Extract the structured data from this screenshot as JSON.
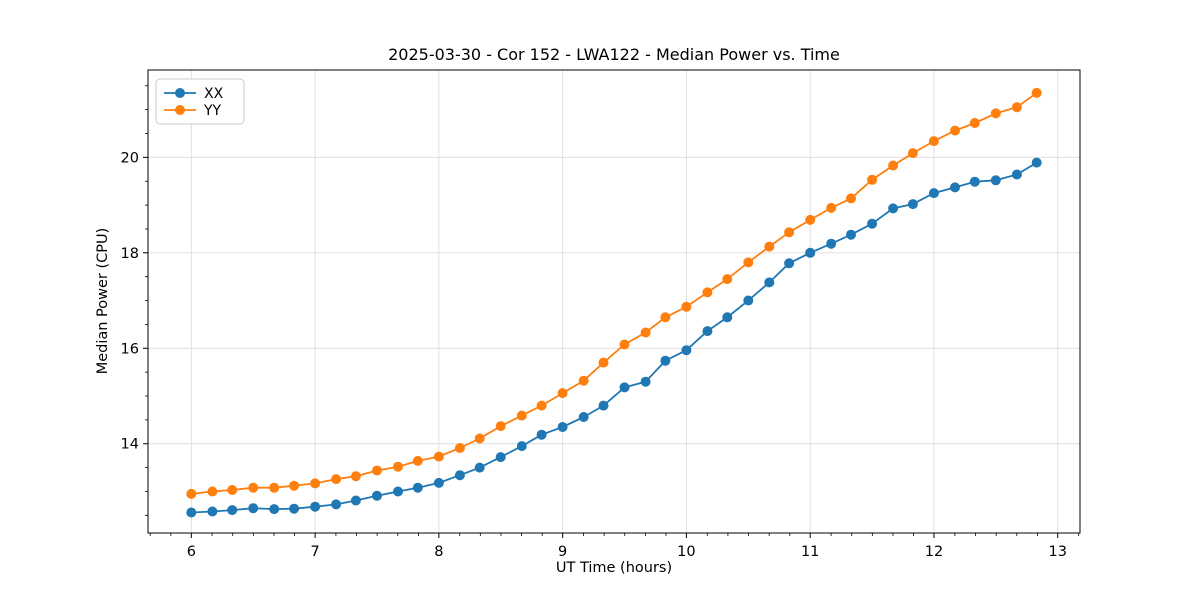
{
  "figure": {
    "title": "2025-03-30 - Cor 152 - LWA122 - Median Power vs. Time"
  },
  "chart_data": {
    "type": "line",
    "title": "2025-03-30 - Cor 152 - LWA122 - Median Power vs. Time",
    "xlabel": "UT Time (hours)",
    "ylabel": "Median Power (CPU)",
    "xlim": [
      5.65,
      13.18
    ],
    "ylim": [
      12.13,
      21.83
    ],
    "xticks": [
      6,
      7,
      8,
      9,
      10,
      11,
      12,
      13
    ],
    "yticks": [
      14,
      16,
      18,
      20
    ],
    "minor_x_step": 0.1667,
    "minor_y_step": 0.5,
    "grid": true,
    "grid_color": "#dcdcdc",
    "spine_color": "#000000",
    "legend_position": "upper left",
    "x": [
      6.0,
      6.17,
      6.33,
      6.5,
      6.67,
      6.83,
      7.0,
      7.17,
      7.33,
      7.5,
      7.67,
      7.83,
      8.0,
      8.17,
      8.33,
      8.5,
      8.67,
      8.83,
      9.0,
      9.17,
      9.33,
      9.5,
      9.67,
      9.83,
      10.0,
      10.17,
      10.33,
      10.5,
      10.67,
      10.83,
      11.0,
      11.17,
      11.33,
      11.5,
      11.67,
      11.83,
      12.0,
      12.17,
      12.33,
      12.5,
      12.67,
      12.83
    ],
    "series": [
      {
        "name": "XX",
        "color": "#1f77b4",
        "marker": "circle",
        "values": [
          12.56,
          12.58,
          12.61,
          12.65,
          12.63,
          12.64,
          12.68,
          12.73,
          12.81,
          12.91,
          13.0,
          13.08,
          13.18,
          13.34,
          13.5,
          13.72,
          13.95,
          14.19,
          14.35,
          14.56,
          14.8,
          15.18,
          15.3,
          15.74,
          15.96,
          16.36,
          16.65,
          17.0,
          17.38,
          17.78,
          18.0,
          18.19,
          18.38,
          18.61,
          18.93,
          19.02,
          19.25,
          19.37,
          19.49,
          19.52,
          19.64,
          19.89
        ]
      },
      {
        "name": "YY",
        "color": "#ff7f0e",
        "marker": "circle",
        "values": [
          12.95,
          13.0,
          13.03,
          13.08,
          13.08,
          13.12,
          13.17,
          13.26,
          13.32,
          13.44,
          13.52,
          13.64,
          13.73,
          13.91,
          14.11,
          14.37,
          14.59,
          14.8,
          15.06,
          15.32,
          15.7,
          16.08,
          16.33,
          16.65,
          16.87,
          17.17,
          17.45,
          17.8,
          18.13,
          18.43,
          18.69,
          18.94,
          19.14,
          19.53,
          19.83,
          20.09,
          20.34,
          20.56,
          20.72,
          20.92,
          21.05,
          21.35
        ]
      }
    ]
  }
}
